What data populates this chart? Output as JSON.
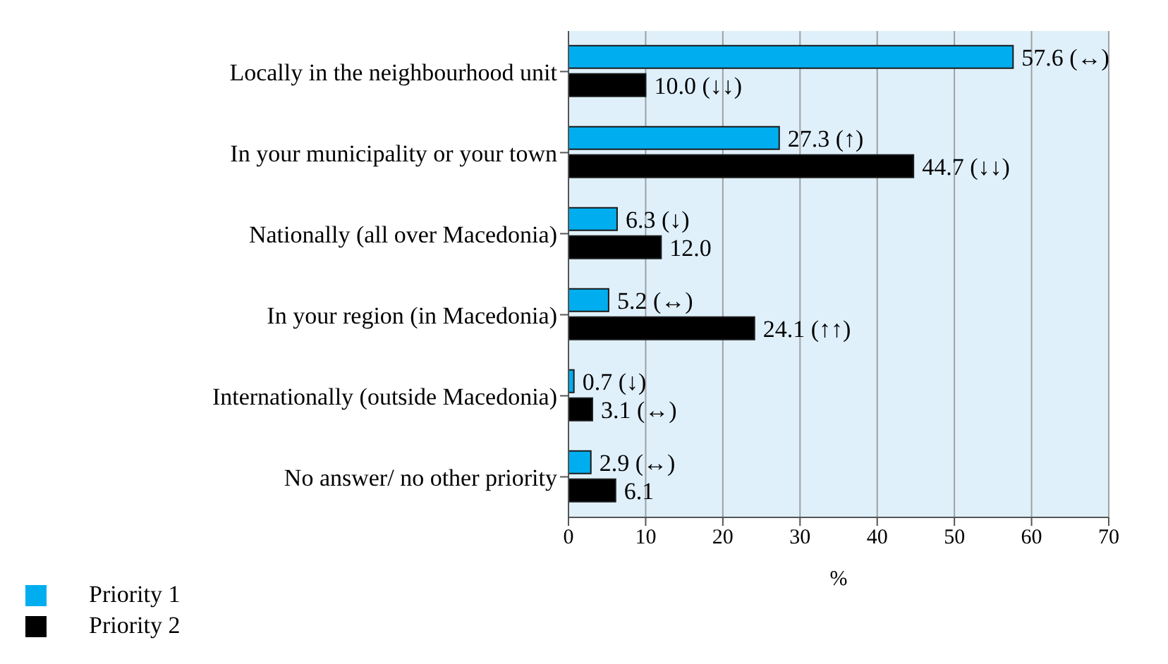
{
  "chart_data": {
    "type": "bar",
    "orientation": "horizontal",
    "xlabel": "%",
    "categories": [
      "Locally in the neighbourhood unit",
      "In your municipality or your town",
      "Nationally (all over Macedonia)",
      "In your region (in Macedonia)",
      "Internationally (outside Macedonia)",
      "No answer/ no other priority"
    ],
    "series": [
      {
        "name": "Priority 1",
        "color": "#00aeef",
        "values": [
          57.6,
          27.3,
          6.3,
          5.2,
          0.7,
          2.9
        ],
        "value_labels": [
          "57.6 (↔)",
          "27.3 (↑)",
          "6.3 (↓)",
          "5.2 (↔)",
          "0.7 (↓)",
          "2.9 (↔)"
        ]
      },
      {
        "name": "Priority 2",
        "color": "#000000",
        "values": [
          10.0,
          44.7,
          12.0,
          24.1,
          3.1,
          6.1
        ],
        "value_labels": [
          "10.0 (↓↓)",
          "44.7 (↓↓)",
          "12.0",
          "24.1 (↑↑)",
          "3.1 (↔)",
          "6.1"
        ]
      }
    ],
    "xlim": [
      0,
      70
    ],
    "xticks": [
      0,
      10,
      20,
      30,
      40,
      50,
      60,
      70
    ],
    "grid": "x",
    "legend": "bottom left"
  }
}
